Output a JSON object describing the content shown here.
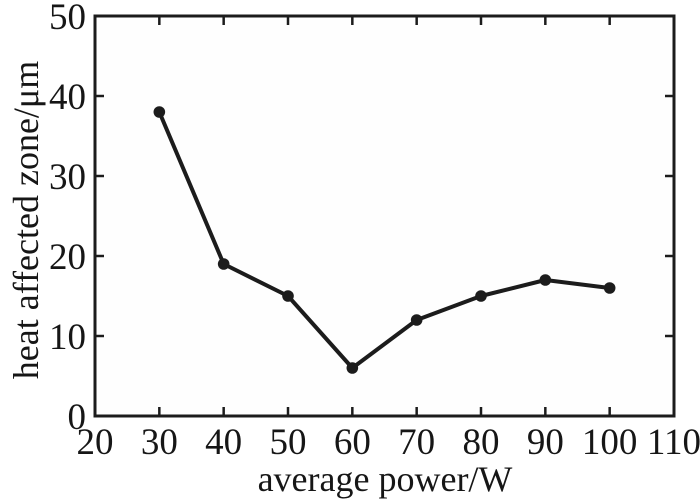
{
  "figure": {
    "background": "#ffffff",
    "axis_color": "#1c1c1c",
    "text_color": "#161616"
  },
  "chart_data": {
    "type": "line",
    "title": "",
    "xlabel": "average power/W",
    "ylabel": "heat affected zone/μm",
    "x": [
      30,
      40,
      50,
      60,
      70,
      80,
      90,
      100
    ],
    "y": [
      38,
      19,
      15,
      6,
      12,
      15,
      17,
      16
    ],
    "series": [
      {
        "name": "heat affected zone",
        "x": [
          30,
          40,
          50,
          60,
          70,
          80,
          90,
          100
        ],
        "y": [
          38,
          19,
          15,
          6,
          12,
          15,
          17,
          16
        ]
      }
    ],
    "xlim": [
      20,
      110
    ],
    "ylim": [
      0,
      50
    ],
    "xticks": [
      20,
      30,
      40,
      50,
      60,
      70,
      80,
      90,
      100,
      110
    ],
    "yticks": [
      0,
      10,
      20,
      30,
      40,
      50
    ],
    "grid": false,
    "legend": false,
    "marker": "circle",
    "line_color": "#1c1c1c",
    "marker_color": "#1c1c1c",
    "line_width": 4,
    "marker_radius": 5.8,
    "tick_direction": "in",
    "box_axes": true
  }
}
